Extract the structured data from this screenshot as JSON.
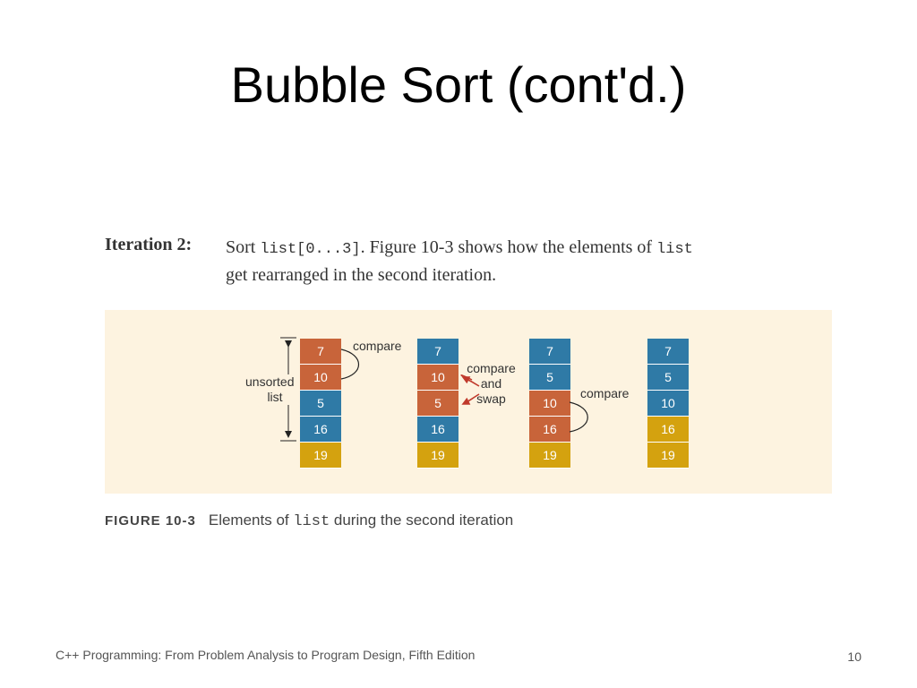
{
  "slide": {
    "title": "Bubble Sort (cont'd.)",
    "footer": "C++ Programming: From Problem Analysis to Program Design, Fifth Edition",
    "page_number": "10"
  },
  "iteration": {
    "label": "Iteration 2:",
    "text_1": "Sort ",
    "code_1": "list[0...3]",
    "text_2": ". Figure 10-3 shows how the elements of ",
    "code_2": "list",
    "text_3": "get rearranged in the second iteration."
  },
  "figure": {
    "colors": {
      "blue": "#2f7aa6",
      "orange": "#c8643a",
      "gold": "#d4a20f",
      "background": "#fdf3e0"
    },
    "stacks": [
      {
        "cells": [
          {
            "value": "7",
            "color": "orange"
          },
          {
            "value": "10",
            "color": "orange"
          },
          {
            "value": "5",
            "color": "blue"
          },
          {
            "value": "16",
            "color": "blue"
          },
          {
            "value": "19",
            "color": "gold"
          }
        ]
      },
      {
        "cells": [
          {
            "value": "7",
            "color": "blue"
          },
          {
            "value": "10",
            "color": "orange"
          },
          {
            "value": "5",
            "color": "orange"
          },
          {
            "value": "16",
            "color": "blue"
          },
          {
            "value": "19",
            "color": "gold"
          }
        ]
      },
      {
        "cells": [
          {
            "value": "7",
            "color": "blue"
          },
          {
            "value": "5",
            "color": "blue"
          },
          {
            "value": "10",
            "color": "orange"
          },
          {
            "value": "16",
            "color": "orange"
          },
          {
            "value": "19",
            "color": "gold"
          }
        ]
      },
      {
        "cells": [
          {
            "value": "7",
            "color": "blue"
          },
          {
            "value": "5",
            "color": "blue"
          },
          {
            "value": "10",
            "color": "blue"
          },
          {
            "value": "16",
            "color": "gold"
          },
          {
            "value": "19",
            "color": "gold"
          }
        ]
      }
    ],
    "labels": {
      "unsorted_line1": "unsorted",
      "unsorted_line2": "list",
      "compare_1": "compare",
      "compare_swap_line1": "compare",
      "compare_swap_line2": "and",
      "compare_swap_line3": "swap",
      "compare_2": "compare"
    },
    "caption_number": "FIGURE 10-3",
    "caption_text_1": "Elements of ",
    "caption_code": "list",
    "caption_text_2": " during the second iteration"
  }
}
